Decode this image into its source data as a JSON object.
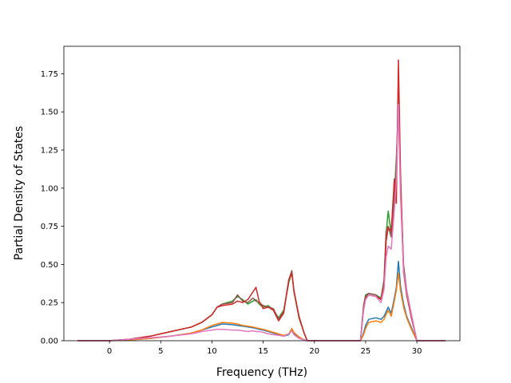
{
  "chart_data": {
    "type": "line",
    "title": "",
    "xlabel": "Frequency (THz)",
    "ylabel": "Partial Density of States",
    "xlim": [
      -4.45,
      34.2
    ],
    "ylim": [
      0,
      1.93
    ],
    "xticks": [
      0,
      5,
      10,
      15,
      20,
      25,
      30
    ],
    "yticks": [
      0.0,
      0.25,
      0.5,
      0.75,
      1.0,
      1.25,
      1.5,
      1.75
    ],
    "xtick_labels": [
      "0",
      "5",
      "10",
      "15",
      "20",
      "25",
      "30"
    ],
    "ytick_labels": [
      "0.00",
      "0.25",
      "0.50",
      "0.75",
      "1.00",
      "1.25",
      "1.50",
      "1.75"
    ],
    "grid": false,
    "legend": "none",
    "x": [
      -3.1,
      0,
      2,
      4,
      6,
      8,
      9,
      10,
      10.5,
      11,
      12,
      12.5,
      13,
      13.5,
      14,
      14.3,
      14.6,
      15,
      15.5,
      16,
      16.5,
      17,
      17.5,
      17.8,
      18,
      18.5,
      19,
      19.3,
      19.5,
      24.5,
      24.8,
      25,
      25.3,
      26,
      26.5,
      26.8,
      27,
      27.2,
      27.5,
      27.8,
      28,
      28.2,
      28.4,
      28.7,
      29,
      29.5,
      30,
      32.8
    ],
    "series": [
      {
        "values": [
          0,
          0,
          0.005,
          0.015,
          0.03,
          0.05,
          0.07,
          0.09,
          0.1,
          0.11,
          0.105,
          0.1,
          0.095,
          0.09,
          0.085,
          0.08,
          0.075,
          0.07,
          0.06,
          0.05,
          0.04,
          0.03,
          0.04,
          0.07,
          0.05,
          0.02,
          0.005,
          0,
          0,
          0,
          0.05,
          0.1,
          0.14,
          0.15,
          0.14,
          0.16,
          0.19,
          0.22,
          0.18,
          0.28,
          0.35,
          0.52,
          0.36,
          0.24,
          0.16,
          0.08,
          0,
          0
        ]
      },
      {
        "values": [
          0,
          0,
          0.005,
          0.015,
          0.03,
          0.05,
          0.07,
          0.1,
          0.11,
          0.12,
          0.115,
          0.11,
          0.1,
          0.095,
          0.09,
          0.085,
          0.08,
          0.075,
          0.065,
          0.055,
          0.045,
          0.035,
          0.045,
          0.08,
          0.055,
          0.025,
          0.005,
          0,
          0,
          0,
          0.04,
          0.08,
          0.12,
          0.13,
          0.12,
          0.14,
          0.17,
          0.2,
          0.16,
          0.26,
          0.33,
          0.44,
          0.33,
          0.22,
          0.15,
          0.07,
          0,
          0
        ]
      },
      {
        "values": [
          0,
          0,
          0.01,
          0.03,
          0.06,
          0.09,
          0.12,
          0.17,
          0.22,
          0.24,
          0.26,
          0.29,
          0.27,
          0.24,
          0.26,
          0.27,
          0.24,
          0.22,
          0.23,
          0.2,
          0.15,
          0.2,
          0.38,
          0.45,
          0.32,
          0.15,
          0.05,
          0,
          0,
          0,
          0.23,
          0.3,
          0.31,
          0.3,
          0.28,
          0.4,
          0.7,
          0.85,
          0.7,
          0.95,
          1.2,
          1.5,
          1.0,
          0.48,
          0.32,
          0.15,
          0,
          0
        ]
      },
      {
        "values": [
          0,
          0,
          0.01,
          0.03,
          0.06,
          0.09,
          0.12,
          0.17,
          0.22,
          0.24,
          0.25,
          0.3,
          0.26,
          0.25,
          0.28,
          0.26,
          0.25,
          0.23,
          0.22,
          0.21,
          0.14,
          0.19,
          0.4,
          0.46,
          0.33,
          0.15,
          0.05,
          0,
          0,
          0,
          0.23,
          0.29,
          0.31,
          0.3,
          0.27,
          0.38,
          0.72,
          0.75,
          0.68,
          0.9,
          1.15,
          1.6,
          1.05,
          0.5,
          0.33,
          0.16,
          0,
          0
        ]
      },
      {
        "values": [
          0,
          0,
          0.01,
          0.03,
          0.06,
          0.09,
          0.12,
          0.17,
          0.22,
          0.23,
          0.24,
          0.26,
          0.25,
          0.27,
          0.32,
          0.35,
          0.26,
          0.21,
          0.22,
          0.2,
          0.13,
          0.18,
          0.4,
          0.44,
          0.33,
          0.16,
          0.05,
          0,
          0,
          0,
          0.21,
          0.28,
          0.3,
          0.29,
          0.27,
          0.37,
          0.65,
          0.74,
          0.72,
          1.06,
          0.9,
          1.84,
          1.1,
          0.45,
          0.3,
          0.14,
          0,
          0
        ]
      },
      {
        "values": [
          0,
          0,
          0.01,
          0.02,
          0.03,
          0.045,
          0.06,
          0.07,
          0.075,
          0.075,
          0.07,
          0.07,
          0.065,
          0.06,
          0.065,
          0.06,
          0.06,
          0.055,
          0.045,
          0.04,
          0.035,
          0.03,
          0.045,
          0.065,
          0.04,
          0.015,
          0.005,
          0,
          0,
          0,
          0.2,
          0.27,
          0.3,
          0.29,
          0.25,
          0.34,
          0.55,
          0.62,
          0.6,
          0.86,
          1.05,
          1.55,
          0.95,
          0.46,
          0.32,
          0.16,
          0,
          0
        ]
      }
    ],
    "colors": [
      "#1f77b4",
      "#ff7f0e",
      "#2ca02c",
      "#8c564b",
      "#d62728",
      "#e377c2"
    ]
  }
}
